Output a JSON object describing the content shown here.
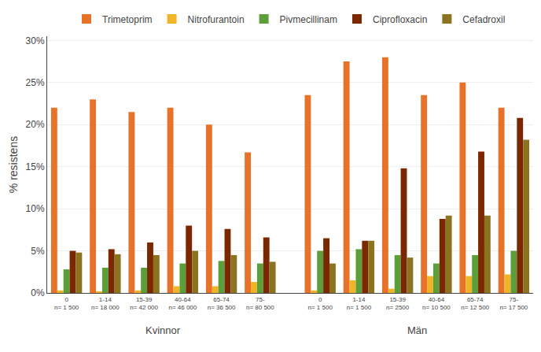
{
  "chart_data": {
    "type": "bar",
    "categories": [
      "0",
      "1-14",
      "15-39",
      "40-64",
      "65-74",
      "75-",
      "0",
      "1-14",
      "15-39",
      "40-64",
      "65-74",
      "75-"
    ],
    "category_notes": [
      "n= 1 500",
      "n= 18 000",
      "n= 42 000",
      "n= 46 000",
      "n= 36 500",
      "n= 80 500",
      "n= 1 500",
      "n= 1 500",
      "n= 2500",
      "n= 10 500",
      "n= 12 500",
      "n= 17 500"
    ],
    "sections": [
      "Kvinnor",
      "Kvinnor",
      "Kvinnor",
      "Kvinnor",
      "Kvinnor",
      "Kvinnor",
      "Män",
      "Män",
      "Män",
      "Män",
      "Män",
      "Män"
    ],
    "series": [
      {
        "name": "Trimetoprim",
        "color": "#E8722A",
        "values": [
          22.0,
          23.0,
          21.5,
          22.0,
          20.0,
          16.7,
          23.5,
          27.5,
          28.0,
          23.5,
          25.0,
          22.0
        ]
      },
      {
        "name": "Nitrofurantoin",
        "color": "#F0B429",
        "values": [
          0.3,
          0.2,
          0.3,
          0.8,
          0.8,
          1.3,
          0.3,
          1.5,
          0.5,
          2.0,
          2.0,
          2.2
        ]
      },
      {
        "name": "Pivmecillinam",
        "color": "#5B9E3A",
        "values": [
          2.8,
          3.0,
          3.0,
          3.5,
          3.8,
          3.5,
          5.0,
          5.2,
          4.5,
          3.5,
          4.5,
          5.0
        ]
      },
      {
        "name": "Ciprofloxacin",
        "color": "#7B2800",
        "values": [
          5.0,
          5.2,
          6.0,
          8.0,
          7.6,
          6.6,
          6.5,
          6.2,
          14.8,
          8.8,
          16.8,
          20.8
        ]
      },
      {
        "name": "Cefadroxil",
        "color": "#8B7320",
        "values": [
          4.8,
          4.6,
          4.5,
          5.0,
          4.5,
          3.7,
          3.5,
          6.2,
          4.2,
          9.2,
          9.2,
          18.2
        ]
      }
    ],
    "ylabel": "% resistens",
    "ylim": [
      0,
      30.5
    ],
    "yticks": [
      {
        "value": 0,
        "label": "0%"
      },
      {
        "value": 5,
        "label": "5%"
      },
      {
        "value": 10,
        "label": "10%"
      },
      {
        "value": 15,
        "label": "15%"
      },
      {
        "value": 20,
        "label": "20%"
      },
      {
        "value": 25,
        "label": "25%"
      },
      {
        "value": 30,
        "label": "30%"
      }
    ],
    "grid": true,
    "legend": "top"
  }
}
